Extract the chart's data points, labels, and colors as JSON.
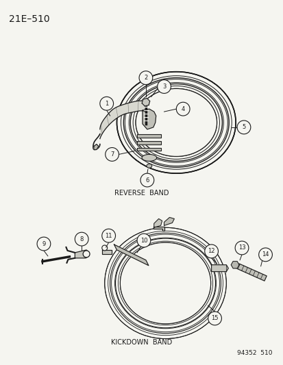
{
  "title": "21E–510",
  "bg_color": "#f5f5f0",
  "line_color": "#1a1a1a",
  "text_color": "#1a1a1a",
  "label_reverse": "REVERSE  BAND",
  "label_kickdown": "KICKDOWN  BAND",
  "footer": "94352  510",
  "figsize": [
    4.14,
    5.33
  ],
  "dpi": 100
}
